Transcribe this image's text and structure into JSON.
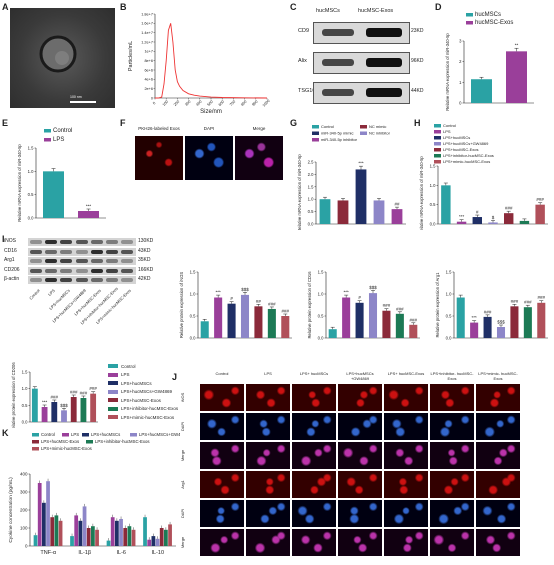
{
  "panel_letters": {
    "A": "A",
    "B": "B",
    "C": "C",
    "D": "D",
    "E": "E",
    "F": "F",
    "G": "G",
    "H": "H",
    "I": "I",
    "J": "J",
    "K": "K"
  },
  "panelA": {
    "scale_text": "100 nm"
  },
  "panelB": {
    "ylabel": "Particles/mL",
    "xlabel": "Size/nm",
    "yticks": [
      "0",
      "2e+6",
      "4e+6",
      "6e+6",
      "8e+6",
      "1e+7",
      "1.2e+7",
      "1.4e+7",
      "1.6e+7",
      "1.8e+7"
    ],
    "xticks": [
      "0",
      "100",
      "200",
      "300",
      "400",
      "500",
      "600",
      "700",
      "800",
      "900",
      "1000"
    ]
  },
  "panelC": {
    "col1": "hucMSCs",
    "col2": "hucMSC-Exos",
    "rows": [
      {
        "name": "CD9",
        "kd": "23KD"
      },
      {
        "name": "Alix",
        "kd": "96KD"
      },
      {
        "name": "TSG101",
        "kd": "44KD"
      }
    ]
  },
  "panelD": {
    "legend": [
      "hucMSCs",
      "hucMSC-Exos"
    ],
    "ylabel": "Relative mRNA expression of miR-340-5p",
    "yticks": [
      "0",
      "1",
      "2",
      "3"
    ],
    "star": "**"
  },
  "panelE": {
    "legend": [
      "Control",
      "LPS"
    ],
    "ylabel": "Relative mRNA expression of miR-340-5p",
    "yticks": [
      "0.0",
      "0.5",
      "1.0",
      "1.5"
    ],
    "star": "***"
  },
  "panelF": {
    "labels": [
      "PKH26-labeled Exos",
      "DAPI",
      "Merge"
    ]
  },
  "panelG": {
    "legend": [
      "Control",
      "NC mimic",
      "miR-340-5p mimic",
      "NC inhibitor",
      "miR-340-5p inhibitor"
    ],
    "ylabel": "Relative mRNA expression of miR-340-5p",
    "yticks": [
      "0.0",
      "0.5",
      "1.0",
      "1.5",
      "2.0",
      "2.5"
    ],
    "stars": [
      "",
      "",
      "***",
      "",
      "##"
    ]
  },
  "panelH": {
    "legend": [
      "Control",
      "LPS",
      "LPS+hucMSCs",
      "LPS+hucMSCs+GW4869",
      "LPS+hucMSC-Exos",
      "LPS+inhibitor-hucMSC-Exos",
      "LPS+mimic-hucMSC-Exos"
    ],
    "ylabel": "Relative mRNA expression of miR-340-5p",
    "yticks": [
      "0.0",
      "0.5",
      "1.0",
      "1.5"
    ],
    "stars": [
      "",
      "***",
      "#",
      "$",
      "###",
      "",
      "###"
    ]
  },
  "panelI_blot": {
    "rows": [
      {
        "name": "iNOS",
        "kd": "130KD"
      },
      {
        "name": "CD16",
        "kd": "43KD"
      },
      {
        "name": "Arg1",
        "kd": "35KD"
      },
      {
        "name": "CD206",
        "kd": "166KD"
      },
      {
        "name": "β-actin",
        "kd": "42KD"
      }
    ],
    "lanes": [
      "Control",
      "LPS",
      "LPS+hucMSCs",
      "LPS+hucMSCs+GW4869",
      "LPS+hucMSC-Exos",
      "LPS+inhibitor-hucMSC-Exos",
      "LPS+mimic-hucMSC-Exos"
    ]
  },
  "panelI_charts": [
    {
      "ylabel": "Relative protein expression of iNOS",
      "yticks": [
        "0.0",
        "0.5",
        "1.0",
        "1.5"
      ],
      "stars": [
        "",
        "***",
        "#",
        "$$$",
        "##",
        "###",
        "###"
      ]
    },
    {
      "ylabel": "Relative protein expression of CD16",
      "yticks": [
        "0.0",
        "0.5",
        "1.0",
        "1.5"
      ],
      "stars": [
        "",
        "***",
        "#",
        "$$$",
        "###",
        "###",
        "###"
      ]
    },
    {
      "ylabel": "Relative protein expression of Arg1",
      "yticks": [
        "0.0",
        "0.5",
        "1.0",
        "1.5"
      ],
      "stars": [
        "",
        "***",
        "###",
        "$$$",
        "###",
        "###",
        "###"
      ]
    },
    {
      "ylabel": "Relative protein expression of CD206",
      "yticks": [
        "0.0",
        "0.5",
        "1.0",
        "1.5"
      ],
      "stars": [
        "",
        "***",
        "###",
        "$$$",
        "###",
        "###",
        "###"
      ]
    }
  ],
  "legend7": [
    "Control",
    "LPS",
    "LPS+hucMSCs",
    "LPS+hucMSCs+GW4869",
    "LPS+hucMSC-Exos",
    "LPS+inhibitor-hucMSC-Exos",
    "LPS+mimic-hucMSC-Exos"
  ],
  "panelJ": {
    "columns": [
      "Control",
      "LPS",
      "LPS+ hucMSCs",
      "LPS+hucMSCs +GW4869",
      "LPS+ hucMSC-Exos",
      "LPS+inhibitor- hucMSC-Exos",
      "LPS+mimic- hucMSC-Exos"
    ],
    "rows": [
      "iNOS",
      "DAPI",
      "Merge",
      "Arg1",
      "DAPI",
      "Merge"
    ]
  },
  "panelK": {
    "legend": [
      "Control",
      "LPS",
      "LPS+hucMSCs",
      "LPS+hucMSCs+GW4869",
      "LPS+hucMSC-Exos",
      "LPS+inhibitor-hucMSC-Exos",
      "LPS+mimic-hucMSC-Exos"
    ],
    "ylabel": "Cyokine concentration (pg/mL)",
    "yticks": [
      "0",
      "100",
      "200",
      "300",
      "400"
    ],
    "groups": [
      "TNF-α",
      "IL-1β",
      "IL-6",
      "IL-10"
    ]
  },
  "colors": {
    "teal": "#2aa2a4",
    "purple": "#9a3f9a",
    "navy": "#1f2f66",
    "lav": "#8d86c8",
    "maroon": "#8b2a3a",
    "green": "#1c7a55",
    "rose": "#b0505a"
  },
  "chart_data": [
    {
      "type": "line",
      "id": "B",
      "x": [
        0,
        30,
        60,
        80,
        100,
        120,
        140,
        160,
        180,
        200,
        220,
        250,
        300,
        350,
        400,
        500,
        600,
        800,
        1000
      ],
      "y": [
        0,
        0,
        200000.0,
        3000000.0,
        8000000.0,
        14500000.0,
        16000000.0,
        12000000.0,
        6000000.0,
        3500000.0,
        2500000.0,
        1600000.0,
        900000.0,
        600000.0,
        400000.0,
        200000.0,
        100000.0,
        50000.0,
        0
      ],
      "ylim": [
        0,
        18000000.0
      ],
      "xlim": [
        0,
        1000
      ]
    },
    {
      "type": "bar",
      "id": "D",
      "categories": [
        "hucMSCs",
        "hucMSC-Exos"
      ],
      "values": [
        1.15,
        2.5
      ],
      "ylim": [
        0,
        3
      ]
    },
    {
      "type": "bar",
      "id": "E",
      "categories": [
        "Control",
        "LPS"
      ],
      "values": [
        1.0,
        0.15
      ],
      "ylim": [
        0,
        1.5
      ]
    },
    {
      "type": "bar",
      "id": "G",
      "categories": [
        "Control",
        "NC mimic",
        "miR-340-5p mimic",
        "NC inhibitor",
        "miR-340-5p inhibitor"
      ],
      "values": [
        1.0,
        0.95,
        2.2,
        0.95,
        0.6
      ],
      "ylim": [
        0,
        2.5
      ]
    },
    {
      "type": "bar",
      "id": "H",
      "categories": [
        "Control",
        "LPS",
        "LPS+hucMSCs",
        "LPS+hucMSCs+GW4869",
        "LPS+hucMSC-Exos",
        "LPS+inhibitor-hucMSC-Exos",
        "LPS+mimic-hucMSC-Exos"
      ],
      "values": [
        1.0,
        0.06,
        0.18,
        0.04,
        0.28,
        0.08,
        0.5
      ],
      "ylim": [
        0,
        1.5
      ]
    },
    {
      "type": "bar",
      "id": "I-iNOS",
      "values": [
        0.38,
        0.92,
        0.78,
        0.98,
        0.72,
        0.66,
        0.5
      ],
      "ylim": [
        0,
        1.5
      ]
    },
    {
      "type": "bar",
      "id": "I-CD16",
      "values": [
        0.2,
        0.92,
        0.8,
        1.02,
        0.62,
        0.55,
        0.3
      ],
      "ylim": [
        0,
        1.5
      ]
    },
    {
      "type": "bar",
      "id": "I-Arg1",
      "values": [
        0.92,
        0.35,
        0.48,
        0.25,
        0.72,
        0.7,
        0.8
      ],
      "ylim": [
        0,
        1.5
      ]
    },
    {
      "type": "bar",
      "id": "I-CD206",
      "values": [
        1.0,
        0.45,
        0.6,
        0.35,
        0.75,
        0.72,
        0.85
      ],
      "ylim": [
        0,
        1.5
      ]
    },
    {
      "type": "bar",
      "id": "K",
      "categories": [
        "TNF-α",
        "IL-1β",
        "IL-6",
        "IL-10"
      ],
      "series": [
        {
          "name": "Control",
          "values": [
            60,
            55,
            30,
            160
          ]
        },
        {
          "name": "LPS",
          "values": [
            350,
            170,
            160,
            35
          ]
        },
        {
          "name": "LPS+hucMSCs",
          "values": [
            240,
            140,
            140,
            55
          ]
        },
        {
          "name": "LPS+hucMSCs+GW4869",
          "values": [
            360,
            220,
            150,
            40
          ]
        },
        {
          "name": "LPS+hucMSC-Exos",
          "values": [
            160,
            100,
            100,
            100
          ]
        },
        {
          "name": "LPS+inhibitor-hucMSC-Exos",
          "values": [
            170,
            110,
            110,
            90
          ]
        },
        {
          "name": "LPS+mimic-hucMSC-Exos",
          "values": [
            140,
            90,
            90,
            120
          ]
        }
      ],
      "ylim": [
        0,
        400
      ]
    }
  ]
}
